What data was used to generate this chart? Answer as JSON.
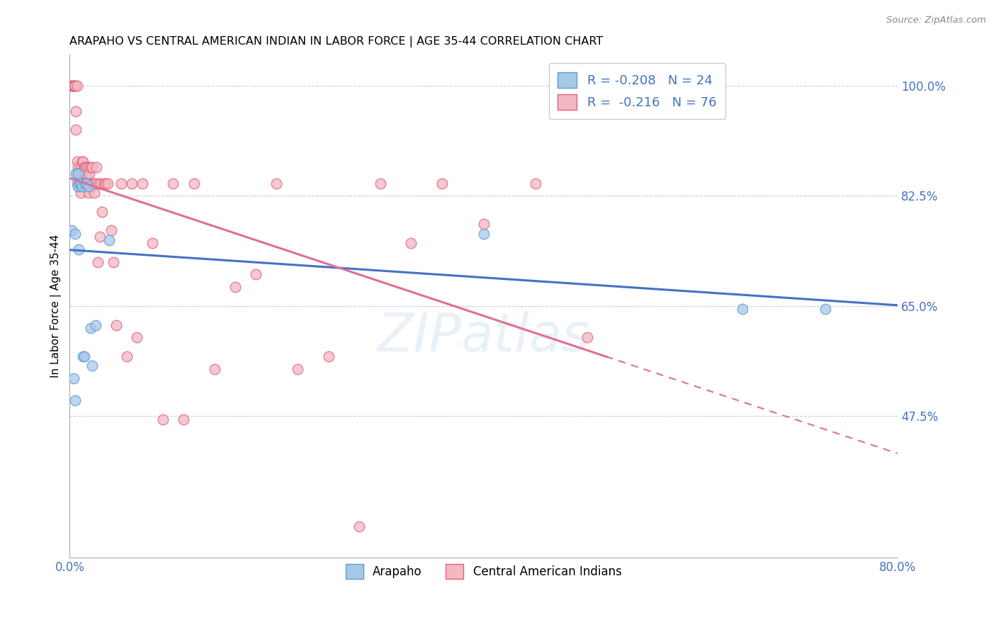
{
  "title": "ARAPAHO VS CENTRAL AMERICAN INDIAN IN LABOR FORCE | AGE 35-44 CORRELATION CHART",
  "source": "Source: ZipAtlas.com",
  "ylabel": "In Labor Force | Age 35-44",
  "xlim": [
    0.0,
    0.8
  ],
  "ylim": [
    0.25,
    1.05
  ],
  "xticks": [
    0.0,
    0.1,
    0.2,
    0.3,
    0.4,
    0.5,
    0.6,
    0.7,
    0.8
  ],
  "ytick_positions": [
    0.475,
    0.65,
    0.825,
    1.0
  ],
  "ytick_labels": [
    "47.5%",
    "65.0%",
    "82.5%",
    "100.0%"
  ],
  "legend_r_blue": "R = -0.208",
  "legend_n_blue": "N = 24",
  "legend_r_pink": "R =  -0.216",
  "legend_n_pink": "N = 76",
  "blue_scatter_color": "#a8c8e8",
  "blue_edge_color": "#5b9bd5",
  "pink_scatter_color": "#f4b8c1",
  "pink_edge_color": "#e06080",
  "blue_line_color": "#4472c4",
  "pink_line_color": "#e07090",
  "watermark": "ZIPatlas",
  "arapaho_x": [
    0.002,
    0.004,
    0.005,
    0.005,
    0.006,
    0.007,
    0.008,
    0.008,
    0.009,
    0.01,
    0.011,
    0.012,
    0.013,
    0.014,
    0.015,
    0.016,
    0.018,
    0.02,
    0.022,
    0.025,
    0.038,
    0.4,
    0.65,
    0.73
  ],
  "arapaho_y": [
    0.77,
    0.535,
    0.5,
    0.765,
    0.86,
    0.845,
    0.86,
    0.84,
    0.74,
    0.845,
    0.845,
    0.84,
    0.57,
    0.57,
    0.845,
    0.845,
    0.84,
    0.615,
    0.555,
    0.62,
    0.755,
    0.765,
    0.645,
    0.645
  ],
  "central_x": [
    0.002,
    0.002,
    0.003,
    0.004,
    0.004,
    0.005,
    0.005,
    0.006,
    0.006,
    0.007,
    0.007,
    0.008,
    0.008,
    0.009,
    0.009,
    0.01,
    0.01,
    0.011,
    0.011,
    0.012,
    0.012,
    0.013,
    0.013,
    0.014,
    0.014,
    0.015,
    0.015,
    0.016,
    0.016,
    0.017,
    0.018,
    0.018,
    0.019,
    0.02,
    0.02,
    0.021,
    0.022,
    0.022,
    0.023,
    0.024,
    0.025,
    0.026,
    0.027,
    0.028,
    0.029,
    0.03,
    0.031,
    0.033,
    0.035,
    0.037,
    0.04,
    0.042,
    0.045,
    0.05,
    0.055,
    0.06,
    0.065,
    0.07,
    0.08,
    0.09,
    0.1,
    0.11,
    0.12,
    0.14,
    0.16,
    0.18,
    0.2,
    0.22,
    0.25,
    0.28,
    0.3,
    0.33,
    0.36,
    0.4,
    0.45,
    0.5
  ],
  "central_y": [
    1.0,
    1.0,
    1.0,
    1.0,
    1.0,
    1.0,
    1.0,
    0.96,
    0.93,
    1.0,
    0.88,
    0.87,
    0.86,
    0.845,
    0.84,
    0.845,
    0.85,
    0.87,
    0.83,
    0.88,
    0.86,
    0.88,
    0.845,
    0.87,
    0.845,
    0.87,
    0.84,
    0.87,
    0.86,
    0.845,
    0.83,
    0.87,
    0.86,
    0.87,
    0.845,
    0.84,
    0.845,
    0.87,
    0.845,
    0.83,
    0.845,
    0.87,
    0.72,
    0.845,
    0.76,
    0.845,
    0.8,
    0.845,
    0.845,
    0.845,
    0.77,
    0.72,
    0.62,
    0.845,
    0.57,
    0.845,
    0.6,
    0.845,
    0.75,
    0.47,
    0.845,
    0.47,
    0.845,
    0.55,
    0.68,
    0.7,
    0.845,
    0.55,
    0.57,
    0.3,
    0.845,
    0.75,
    0.845,
    0.78,
    0.845,
    0.6
  ]
}
